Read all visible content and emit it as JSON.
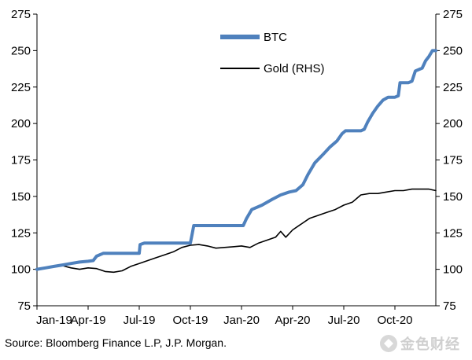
{
  "chart_data": {
    "type": "line",
    "title": "",
    "xlabel": "",
    "ylabel": "",
    "ylim": [
      75,
      275
    ],
    "y_ticks": [
      "275",
      "250",
      "225",
      "200",
      "175",
      "150",
      "125",
      "100",
      "75"
    ],
    "y_ticks_right": [
      "275",
      "250",
      "225",
      "200",
      "175",
      "150",
      "125",
      "100",
      "75"
    ],
    "x_range": [
      0,
      23.4
    ],
    "x_ticks": [
      {
        "label": "Jan-19",
        "pos": 0
      },
      {
        "label": "Apr-19",
        "pos": 3
      },
      {
        "label": "Jul-19",
        "pos": 6
      },
      {
        "label": "Oct-19",
        "pos": 9
      },
      {
        "label": "Jan-20",
        "pos": 12
      },
      {
        "label": "Apr-20",
        "pos": 15
      },
      {
        "label": "Jul-20",
        "pos": 18
      },
      {
        "label": "Oct-20",
        "pos": 21
      }
    ],
    "legend_position": "top-center",
    "series": [
      {
        "name": "BTC",
        "color": "#4f81bd",
        "axis": "left",
        "points": [
          [
            0,
            100
          ],
          [
            0.5,
            101
          ],
          [
            1,
            102
          ],
          [
            1.5,
            103
          ],
          [
            2,
            104
          ],
          [
            2.5,
            105
          ],
          [
            3,
            105.5
          ],
          [
            3.3,
            106
          ],
          [
            3.5,
            109
          ],
          [
            3.9,
            111
          ],
          [
            4.5,
            111
          ],
          [
            5.5,
            111
          ],
          [
            6,
            111
          ],
          [
            6.05,
            117
          ],
          [
            6.3,
            118
          ],
          [
            7.5,
            118
          ],
          [
            8.5,
            118
          ],
          [
            8.9,
            118
          ],
          [
            9,
            118
          ],
          [
            9.1,
            124
          ],
          [
            9.2,
            130
          ],
          [
            10.5,
            130
          ],
          [
            11.5,
            130
          ],
          [
            12.1,
            130
          ],
          [
            12.3,
            135
          ],
          [
            12.6,
            141
          ],
          [
            13.2,
            144
          ],
          [
            13.8,
            148
          ],
          [
            14.3,
            151
          ],
          [
            14.8,
            153
          ],
          [
            15.2,
            154
          ],
          [
            15.6,
            158
          ],
          [
            15.9,
            165
          ],
          [
            16.3,
            173
          ],
          [
            16.8,
            179
          ],
          [
            17.2,
            184
          ],
          [
            17.6,
            188
          ],
          [
            17.9,
            193
          ],
          [
            18.1,
            195
          ],
          [
            18.5,
            195
          ],
          [
            19,
            195
          ],
          [
            19.2,
            196
          ],
          [
            19.4,
            201
          ],
          [
            19.7,
            207
          ],
          [
            20,
            212
          ],
          [
            20.3,
            216
          ],
          [
            20.6,
            218
          ],
          [
            21,
            218
          ],
          [
            21.2,
            219
          ],
          [
            21.3,
            228
          ],
          [
            21.8,
            228
          ],
          [
            22,
            229
          ],
          [
            22.2,
            236
          ],
          [
            22.6,
            238
          ],
          [
            22.8,
            243
          ],
          [
            23,
            246
          ],
          [
            23.2,
            250
          ],
          [
            23.4,
            250
          ]
        ]
      },
      {
        "name": "Gold (RHS)",
        "color": "#000000",
        "axis": "right",
        "points": [
          [
            0,
            100
          ],
          [
            0.5,
            101
          ],
          [
            1,
            102
          ],
          [
            1.5,
            102.5
          ],
          [
            2,
            101
          ],
          [
            2.5,
            100
          ],
          [
            3,
            101
          ],
          [
            3.5,
            100.5
          ],
          [
            4,
            98.5
          ],
          [
            4.5,
            98
          ],
          [
            5,
            99
          ],
          [
            5.5,
            102
          ],
          [
            6,
            104
          ],
          [
            6.5,
            106
          ],
          [
            7,
            108
          ],
          [
            7.5,
            110
          ],
          [
            8,
            112
          ],
          [
            8.5,
            115
          ],
          [
            9,
            116.5
          ],
          [
            9.5,
            117
          ],
          [
            10,
            116
          ],
          [
            10.5,
            114.5
          ],
          [
            11,
            115
          ],
          [
            11.5,
            115.5
          ],
          [
            12,
            116
          ],
          [
            12.5,
            115
          ],
          [
            13,
            118
          ],
          [
            13.5,
            120
          ],
          [
            14,
            122
          ],
          [
            14.3,
            126
          ],
          [
            14.6,
            122
          ],
          [
            15,
            127
          ],
          [
            15.5,
            131
          ],
          [
            16,
            135
          ],
          [
            16.5,
            137
          ],
          [
            17,
            139
          ],
          [
            17.5,
            141
          ],
          [
            18,
            144
          ],
          [
            18.5,
            146
          ],
          [
            19,
            151
          ],
          [
            19.5,
            152
          ],
          [
            20,
            152
          ],
          [
            20.5,
            153
          ],
          [
            21,
            154
          ],
          [
            21.5,
            154
          ],
          [
            22,
            155
          ],
          [
            22.5,
            155
          ],
          [
            23,
            155
          ],
          [
            23.4,
            154
          ]
        ]
      }
    ],
    "source": "Source: Bloomberg Finance L.P, J.P. Morgan."
  },
  "watermark": {
    "text": "金色财经"
  }
}
